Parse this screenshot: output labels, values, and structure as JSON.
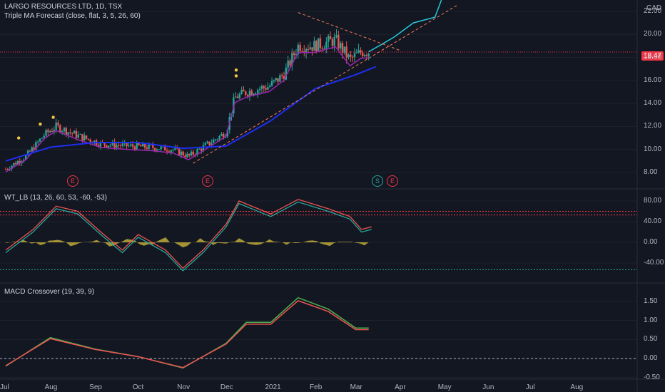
{
  "panes": {
    "main": {
      "title": "LARGO RESOURCES LTD, 1D, TSX",
      "indicator": "Triple MA Forecast (close, flat, 3, 5, 26, 60)"
    },
    "wt": {
      "title": "WT_LB (13, 26, 60, 53, -60, -53)"
    },
    "macd": {
      "title": "MACD Crossover (19, 39, 9)"
    }
  },
  "currency": "CAD",
  "last_price": "18.47",
  "price_ticks": [
    "22.00",
    "20.00",
    "18.00",
    "16.00",
    "14.00",
    "12.00",
    "10.00",
    "8.00"
  ],
  "wt_ticks": [
    "80.00",
    "40.00",
    "0.00",
    "-40.00"
  ],
  "macd_ticks": [
    "1.50",
    "1.00",
    "0.50",
    "0.00",
    "-0.50"
  ],
  "time_ticks": [
    "Jul",
    "Aug",
    "Sep",
    "Oct",
    "Nov",
    "Dec",
    "2021",
    "Feb",
    "Mar",
    "Apr",
    "May",
    "Jun",
    "Jul",
    "Aug"
  ],
  "events": [
    "E",
    "E",
    "S",
    "E"
  ],
  "colors": {
    "bg": "#131722",
    "up": "#26a69a",
    "down": "#ef5350",
    "ma_fast": "#9c27b0",
    "ma_slow": "#1e2ff0",
    "forecast": "#26c6da",
    "trend": "#f57c5b",
    "dots": "#f5c542"
  },
  "chart_data": {
    "type": "line",
    "x_range": [
      "2020-07-01",
      "2021-08-31"
    ],
    "price_close": [
      [
        "2020-07-01",
        8.3
      ],
      [
        "2020-07-15",
        9.4
      ],
      [
        "2020-07-28",
        11.3
      ],
      [
        "2020-08-05",
        12.0
      ],
      [
        "2020-08-20",
        11.2
      ],
      [
        "2020-09-05",
        10.5
      ],
      [
        "2020-09-25",
        10.3
      ],
      [
        "2020-10-10",
        10.2
      ],
      [
        "2020-10-25",
        10.0
      ],
      [
        "2020-11-05",
        9.4
      ],
      [
        "2020-11-20",
        10.6
      ],
      [
        "2020-12-01",
        11.5
      ],
      [
        "2020-12-07",
        14.5
      ],
      [
        "2020-12-15",
        15.0
      ],
      [
        "2020-12-31",
        15.5
      ],
      [
        "2021-01-10",
        16.5
      ],
      [
        "2021-01-20",
        19.0
      ],
      [
        "2021-01-31",
        19.0
      ],
      [
        "2021-02-15",
        19.5
      ],
      [
        "2021-02-25",
        17.8
      ],
      [
        "2021-03-05",
        18.5
      ],
      [
        "2021-03-10",
        18.5
      ]
    ],
    "forecast": [
      [
        "2021-03-10",
        18.5
      ],
      [
        "2021-03-20",
        19.2
      ],
      [
        "2021-03-28",
        19.8
      ],
      [
        "2021-04-10",
        21.0
      ],
      [
        "2021-04-25",
        21.5
      ],
      [
        "2021-05-01",
        23.5
      ]
    ],
    "ma_slow": [
      [
        "2020-07-01",
        9.0
      ],
      [
        "2020-08-01",
        10.2
      ],
      [
        "2020-09-01",
        10.6
      ],
      [
        "2020-10-01",
        10.6
      ],
      [
        "2020-11-01",
        10.1
      ],
      [
        "2020-12-01",
        10.3
      ],
      [
        "2021-01-01",
        12.5
      ],
      [
        "2021-02-01",
        15.3
      ],
      [
        "2021-03-01",
        16.5
      ],
      [
        "2021-03-15",
        17.2
      ]
    ],
    "wt": [
      [
        "2020-07-01",
        -20
      ],
      [
        "2020-07-20",
        20
      ],
      [
        "2020-08-05",
        65
      ],
      [
        "2020-08-20",
        55
      ],
      [
        "2020-09-05",
        15
      ],
      [
        "2020-09-20",
        -20
      ],
      [
        "2020-10-01",
        10
      ],
      [
        "2020-10-20",
        -20
      ],
      [
        "2020-11-01",
        -55
      ],
      [
        "2020-11-15",
        -20
      ],
      [
        "2020-12-01",
        30
      ],
      [
        "2020-12-10",
        75
      ],
      [
        "2021-01-01",
        50
      ],
      [
        "2021-01-20",
        78
      ],
      [
        "2021-02-10",
        60
      ],
      [
        "2021-02-25",
        45
      ],
      [
        "2021-03-05",
        20
      ],
      [
        "2021-03-12",
        25
      ]
    ],
    "macd": [
      [
        "2020-07-01",
        -0.2
      ],
      [
        "2020-08-01",
        0.55
      ],
      [
        "2020-09-01",
        0.25
      ],
      [
        "2020-10-01",
        0.05
      ],
      [
        "2020-11-01",
        -0.25
      ],
      [
        "2020-12-01",
        0.4
      ],
      [
        "2020-12-15",
        0.95
      ],
      [
        "2021-01-01",
        0.95
      ],
      [
        "2021-01-20",
        1.6
      ],
      [
        "2021-02-10",
        1.3
      ],
      [
        "2021-03-01",
        0.8
      ],
      [
        "2021-03-10",
        0.8
      ]
    ],
    "ylabel_price": "CAD"
  }
}
